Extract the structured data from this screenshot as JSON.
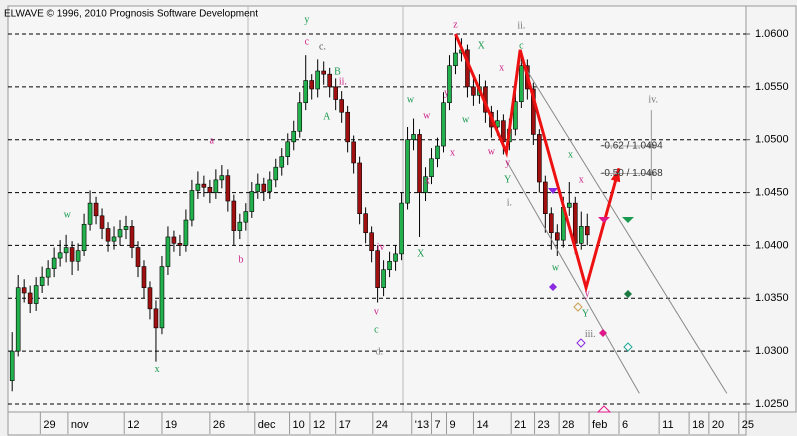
{
  "chart_data": {
    "type": "candlestick",
    "title": "ELWAVE © 1996, 2010 Prognosis Software Development",
    "up_color": "#22b14c",
    "down_color": "#a01010",
    "grid": true,
    "xlim": [
      -0.7,
      122.5
    ],
    "xticks": [
      {
        "value": 4.7,
        "label": "29"
      },
      {
        "value": 9.3,
        "label": "nov"
      },
      {
        "value": 18.7,
        "label": "12"
      },
      {
        "value": 25,
        "label": "19"
      },
      {
        "value": 33,
        "label": "26"
      },
      {
        "value": 40.5,
        "label": "dec"
      },
      {
        "value": 46.3,
        "label": "10"
      },
      {
        "value": 49.7,
        "label": "12"
      },
      {
        "value": 54,
        "label": "17"
      },
      {
        "value": 60.2,
        "label": "24"
      },
      {
        "value": 66.7,
        "label": "'13"
      },
      {
        "value": 70,
        "label": "7"
      },
      {
        "value": 72.5,
        "label": "9"
      },
      {
        "value": 77,
        "label": "14"
      },
      {
        "value": 83.3,
        "label": "21"
      },
      {
        "value": 87.2,
        "label": "23"
      },
      {
        "value": 91.3,
        "label": "28"
      },
      {
        "value": 96.3,
        "label": "feb"
      },
      {
        "value": 101.3,
        "label": "6"
      },
      {
        "value": 108,
        "label": "11"
      },
      {
        "value": 113,
        "label": "18"
      },
      {
        "value": 116.3,
        "label": "20"
      },
      {
        "value": 121.3,
        "label": "25"
      }
    ],
    "ylim": [
      1.02424,
      1.06265
    ],
    "yticks": [
      {
        "value": 1.025,
        "label": "1.0250"
      },
      {
        "value": 1.03,
        "label": "1.0300"
      },
      {
        "value": 1.035,
        "label": "1.0350"
      },
      {
        "value": 1.04,
        "label": "1.0400"
      },
      {
        "value": 1.045,
        "label": "1.0450"
      },
      {
        "value": 1.05,
        "label": "1.0500"
      },
      {
        "value": 1.055,
        "label": "1.0550"
      },
      {
        "value": 1.06,
        "label": "1.0600"
      }
    ],
    "ohlc": [
      [
        1.0272,
        1.0318,
        1.0262,
        1.03
      ],
      [
        1.03,
        1.0372,
        1.0295,
        1.036
      ],
      [
        1.036,
        1.0368,
        1.0346,
        1.0355
      ],
      [
        1.0355,
        1.0362,
        1.0336,
        1.0345
      ],
      [
        1.0345,
        1.037,
        1.0338,
        1.0362
      ],
      [
        1.0362,
        1.038,
        1.0355,
        1.037
      ],
      [
        1.037,
        1.0386,
        1.0362,
        1.0378
      ],
      [
        1.0378,
        1.0398,
        1.037,
        1.0388
      ],
      [
        1.0388,
        1.0405,
        1.038,
        1.0393
      ],
      [
        1.0393,
        1.041,
        1.0384,
        1.0398
      ],
      [
        1.0398,
        1.0404,
        1.0372,
        1.0385
      ],
      [
        1.0385,
        1.0402,
        1.0376,
        1.0395
      ],
      [
        1.0395,
        1.043,
        1.039,
        1.042
      ],
      [
        1.042,
        1.0452,
        1.0414,
        1.044
      ],
      [
        1.044,
        1.0446,
        1.042,
        1.0428
      ],
      [
        1.0428,
        1.0435,
        1.0406,
        1.0416
      ],
      [
        1.0416,
        1.0422,
        1.0394,
        1.0404
      ],
      [
        1.0404,
        1.0418,
        1.0396,
        1.0408
      ],
      [
        1.0408,
        1.0424,
        1.04,
        1.0415
      ],
      [
        1.0415,
        1.0428,
        1.0406,
        1.0418
      ],
      [
        1.0418,
        1.0424,
        1.0388,
        1.0398
      ],
      [
        1.0398,
        1.0404,
        1.037,
        1.038
      ],
      [
        1.038,
        1.0386,
        1.035,
        1.036
      ],
      [
        1.036,
        1.0366,
        1.033,
        1.034
      ],
      [
        1.034,
        1.0348,
        1.029,
        1.0322
      ],
      [
        1.0322,
        1.039,
        1.0316,
        1.038
      ],
      [
        1.038,
        1.0418,
        1.0372,
        1.0408
      ],
      [
        1.0408,
        1.0414,
        1.0394,
        1.0402
      ],
      [
        1.0402,
        1.041,
        1.039,
        1.04
      ],
      [
        1.04,
        1.0434,
        1.0394,
        1.0424
      ],
      [
        1.0424,
        1.0462,
        1.0418,
        1.0452
      ],
      [
        1.0452,
        1.047,
        1.0444,
        1.0458
      ],
      [
        1.0458,
        1.0466,
        1.0446,
        1.0455
      ],
      [
        1.0455,
        1.0462,
        1.044,
        1.045
      ],
      [
        1.045,
        1.0472,
        1.0444,
        1.0462
      ],
      [
        1.0462,
        1.0476,
        1.0454,
        1.0466
      ],
      [
        1.0466,
        1.0472,
        1.0432,
        1.0442
      ],
      [
        1.0442,
        1.0448,
        1.04,
        1.0414
      ],
      [
        1.0414,
        1.043,
        1.0406,
        1.0422
      ],
      [
        1.0422,
        1.044,
        1.0414,
        1.0432
      ],
      [
        1.0432,
        1.046,
        1.0426,
        1.0451
      ],
      [
        1.0451,
        1.0468,
        1.0444,
        1.0458
      ],
      [
        1.0458,
        1.0464,
        1.0442,
        1.0451
      ],
      [
        1.0451,
        1.047,
        1.0444,
        1.0462
      ],
      [
        1.0462,
        1.0482,
        1.0455,
        1.0474
      ],
      [
        1.0474,
        1.0492,
        1.0466,
        1.0484
      ],
      [
        1.0484,
        1.0506,
        1.0476,
        1.0498
      ],
      [
        1.0498,
        1.0518,
        1.049,
        1.0508
      ],
      [
        1.0508,
        1.0545,
        1.0502,
        1.0535
      ],
      [
        1.0535,
        1.058,
        1.0528,
        1.0556
      ],
      [
        1.0556,
        1.0562,
        1.0538,
        1.0548
      ],
      [
        1.0548,
        1.0576,
        1.054,
        1.0565
      ],
      [
        1.0565,
        1.0574,
        1.0552,
        1.0562
      ],
      [
        1.0562,
        1.0568,
        1.054,
        1.055
      ],
      [
        1.055,
        1.0558,
        1.0528,
        1.0538
      ],
      [
        1.0538,
        1.0546,
        1.0516,
        1.0526
      ],
      [
        1.0526,
        1.0532,
        1.0488,
        1.0498
      ],
      [
        1.0498,
        1.0504,
        1.0468,
        1.0478
      ],
      [
        1.0478,
        1.0484,
        1.042,
        1.043
      ],
      [
        1.043,
        1.0436,
        1.0402,
        1.0412
      ],
      [
        1.0412,
        1.0418,
        1.0384,
        1.0395
      ],
      [
        1.0395,
        1.04,
        1.0346,
        1.036
      ],
      [
        1.036,
        1.0386,
        1.0352,
        1.0377
      ],
      [
        1.0377,
        1.0394,
        1.037,
        1.0385
      ],
      [
        1.0385,
        1.04,
        1.0376,
        1.0392
      ],
      [
        1.0392,
        1.045,
        1.0386,
        1.044
      ],
      [
        1.044,
        1.0512,
        1.0434,
        1.05
      ],
      [
        1.05,
        1.052,
        1.049,
        1.0505
      ],
      [
        1.0505,
        1.051,
        1.0408,
        1.045
      ],
      [
        1.045,
        1.0474,
        1.0442,
        1.0465
      ],
      [
        1.0465,
        1.0492,
        1.0458,
        1.0482
      ],
      [
        1.0482,
        1.0502,
        1.0474,
        1.0494
      ],
      [
        1.0494,
        1.0545,
        1.0488,
        1.0535
      ],
      [
        1.0535,
        1.058,
        1.0528,
        1.057
      ],
      [
        1.057,
        1.06,
        1.0562,
        1.0582
      ],
      [
        1.0582,
        1.0596,
        1.0574,
        1.0585
      ],
      [
        1.0585,
        1.059,
        1.054,
        1.055
      ],
      [
        1.055,
        1.0558,
        1.0532,
        1.0542
      ],
      [
        1.0542,
        1.0562,
        1.0534,
        1.055
      ],
      [
        1.055,
        1.0556,
        1.0516,
        1.0526
      ],
      [
        1.0526,
        1.0532,
        1.0502,
        1.0512
      ],
      [
        1.0512,
        1.0528,
        1.0504,
        1.0518
      ],
      [
        1.0518,
        1.0524,
        1.0486,
        1.0498
      ],
      [
        1.0498,
        1.052,
        1.049,
        1.051
      ],
      [
        1.051,
        1.0546,
        1.0504,
        1.0536
      ],
      [
        1.0536,
        1.0584,
        1.053,
        1.057
      ],
      [
        1.057,
        1.0576,
        1.0538,
        1.0548
      ],
      [
        1.0548,
        1.0554,
        1.0495,
        1.0505
      ],
      [
        1.0505,
        1.051,
        1.045,
        1.046
      ],
      [
        1.046,
        1.0466,
        1.0412,
        1.043
      ],
      [
        1.043,
        1.0436,
        1.0396,
        1.0412
      ],
      [
        1.0412,
        1.042,
        1.039,
        1.0405
      ],
      [
        1.0405,
        1.0446,
        1.0398,
        1.0436
      ],
      [
        1.0436,
        1.046,
        1.0428,
        1.044
      ],
      [
        1.044,
        1.0446,
        1.0392,
        1.0402
      ],
      [
        1.0402,
        1.0432,
        1.0396,
        1.0418
      ],
      [
        1.0418,
        1.043,
        1.04,
        1.041
      ]
    ],
    "zigzag": {
      "color": "#ee1111",
      "x": [
        74,
        82.5,
        84.8,
        95.8,
        101.3
      ],
      "y": [
        1.06,
        1.0488,
        1.0585,
        1.036,
        1.0473
      ]
    },
    "channels": [
      {
        "color": "#888888",
        "x": [
          85,
          119.3
        ],
        "y": [
          1.0574,
          1.026
        ]
      },
      {
        "color": "#888888",
        "x": [
          82.5,
          104.7
        ],
        "y": [
          1.048,
          1.026
        ]
      }
    ],
    "targets": [
      {
        "label": "-0.62 / 1.0494",
        "value": 1.0494
      },
      {
        "label": "-0.50 / 1.0468",
        "value": 1.0468
      }
    ],
    "annotations": [
      {
        "text": "y",
        "x": 49.2,
        "y": 1.06132,
        "color": "#1a9a50"
      },
      {
        "text": "c",
        "x": 49.2,
        "y": 1.05924,
        "color": "#cc2288"
      },
      {
        "text": "c.",
        "x": 51.8,
        "y": 1.05877,
        "color": "#555555"
      },
      {
        "text": "B",
        "x": 54.3,
        "y": 1.0564,
        "color": "#1a9a50"
      },
      {
        "text": "ii.",
        "x": 55.2,
        "y": 1.05546,
        "color": "#cc2288"
      },
      {
        "text": "A",
        "x": 52.5,
        "y": 1.05215,
        "color": "#1a9a50"
      },
      {
        "text": "a",
        "x": 33.3,
        "y": 1.04988,
        "color": "#cc2288"
      },
      {
        "text": "w",
        "x": 9.2,
        "y": 1.04288,
        "color": "#1a9a50"
      },
      {
        "text": "b",
        "x": 38.2,
        "y": 1.03862,
        "color": "#cc2288"
      },
      {
        "text": "x",
        "x": 24.2,
        "y": 1.02822,
        "color": "#1a9a50"
      },
      {
        "text": "iv",
        "x": 61.5,
        "y": 1.03976,
        "color": "#cc2288"
      },
      {
        "text": "v",
        "x": 60.8,
        "y": 1.0337,
        "color": "#cc2288"
      },
      {
        "text": "c",
        "x": 60.8,
        "y": 1.032,
        "color": "#1a9a50"
      },
      {
        "text": "d.",
        "x": 61.3,
        "y": 1.02992,
        "color": "#888888"
      },
      {
        "text": "w",
        "x": 66.5,
        "y": 1.05376,
        "color": "#1a9a50"
      },
      {
        "text": "w",
        "x": 69.2,
        "y": 1.05224,
        "color": "#cc2288"
      },
      {
        "text": "x",
        "x": 69.3,
        "y": 1.04609,
        "color": "#cc2288"
      },
      {
        "text": "X",
        "x": 68.2,
        "y": 1.03919,
        "color": "#1a9a50"
      },
      {
        "text": "z",
        "x": 74,
        "y": 1.06085,
        "color": "#cc2288"
      },
      {
        "text": "X",
        "x": 78.3,
        "y": 1.05886,
        "color": "#1a9a50"
      },
      {
        "text": "w",
        "x": 75.7,
        "y": 1.05186,
        "color": "#1a9a50"
      },
      {
        "text": "y",
        "x": 72.5,
        "y": 1.05442,
        "color": "#cc2288"
      },
      {
        "text": "x",
        "x": 73.5,
        "y": 1.04874,
        "color": "#cc2288"
      },
      {
        "text": "w",
        "x": 80,
        "y": 1.04884,
        "color": "#cc2288"
      },
      {
        "text": "x",
        "x": 81.7,
        "y": 1.05678,
        "color": "#cc2288"
      },
      {
        "text": "y",
        "x": 82.7,
        "y": 1.0478,
        "color": "#cc2288"
      },
      {
        "text": "Y",
        "x": 82.7,
        "y": 1.04619,
        "color": "#1a9a50"
      },
      {
        "text": "c",
        "x": 85,
        "y": 1.05886,
        "color": "#1a9a50"
      },
      {
        "text": "ii.",
        "x": 85,
        "y": 1.06076,
        "color": "#777777"
      },
      {
        "text": "i.",
        "x": 83,
        "y": 1.04401,
        "color": "#777777"
      },
      {
        "text": "x",
        "x": 93.2,
        "y": 1.04855,
        "color": "#1a9a50"
      },
      {
        "text": "x",
        "x": 95,
        "y": 1.04619,
        "color": "#cc2288"
      },
      {
        "text": "w",
        "x": 90.7,
        "y": 1.03786,
        "color": "#1a9a50"
      },
      {
        "text": "y",
        "x": 96,
        "y": 1.0354,
        "color": "#cc2288"
      },
      {
        "text": "Y",
        "x": 95.7,
        "y": 1.03351,
        "color": "#1a9a50"
      },
      {
        "text": "iii.",
        "x": 96.5,
        "y": 1.03153,
        "color": "#777777"
      },
      {
        "text": "iv.",
        "x": 107,
        "y": 1.05376,
        "color": "#777777"
      }
    ]
  }
}
